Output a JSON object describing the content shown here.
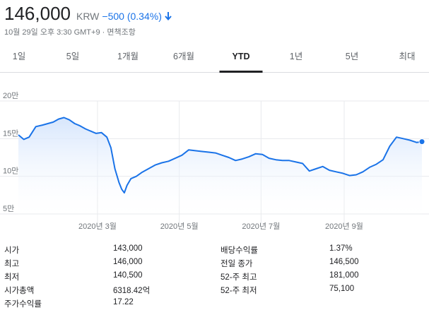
{
  "header": {
    "price": "146,000",
    "currency": "KRW",
    "change": "−500 (0.34%)",
    "change_color": "#1a73e8",
    "subtitle": "10월 29일 오후 3:30 GMT+9 · 면책조항"
  },
  "tabs": [
    {
      "label": "1일",
      "active": false
    },
    {
      "label": "5일",
      "active": false
    },
    {
      "label": "1개월",
      "active": false
    },
    {
      "label": "6개월",
      "active": false
    },
    {
      "label": "YTD",
      "active": true
    },
    {
      "label": "1년",
      "active": false
    },
    {
      "label": "5년",
      "active": false
    },
    {
      "label": "최대",
      "active": false
    }
  ],
  "chart_data": {
    "type": "area",
    "y_tick_labels": [
      "20만",
      "15만",
      "10만",
      "5만"
    ],
    "y_ticks": [
      200000,
      150000,
      100000,
      50000
    ],
    "ylim": [
      50000,
      200000
    ],
    "x_tick_labels": [
      "2020년 3월",
      "2020년 5월",
      "2020년 7월",
      "2020년 9월"
    ],
    "x_ticks": [
      "2020-03-01",
      "2020-05-01",
      "2020-07-01",
      "2020-09-01"
    ],
    "xlim": [
      "2020-01-02",
      "2020-10-29"
    ],
    "line_color": "#1a73e8",
    "fill_color": "#e8f0fe",
    "grid": true,
    "series": [
      {
        "x": [
          "2020-01-02",
          "2020-01-06",
          "2020-01-10",
          "2020-01-15",
          "2020-01-20",
          "2020-01-24",
          "2020-01-28",
          "2020-02-01",
          "2020-02-05",
          "2020-02-09",
          "2020-02-13",
          "2020-02-17",
          "2020-02-21",
          "2020-02-25",
          "2020-02-29",
          "2020-03-04",
          "2020-03-08",
          "2020-03-11",
          "2020-03-14",
          "2020-03-17",
          "2020-03-19",
          "2020-03-21",
          "2020-03-23",
          "2020-03-26",
          "2020-03-30",
          "2020-04-03",
          "2020-04-08",
          "2020-04-13",
          "2020-04-18",
          "2020-04-23",
          "2020-04-28",
          "2020-05-03",
          "2020-05-08",
          "2020-05-13",
          "2020-05-18",
          "2020-05-23",
          "2020-05-28",
          "2020-06-02",
          "2020-06-07",
          "2020-06-12",
          "2020-06-17",
          "2020-06-22",
          "2020-06-27",
          "2020-07-02",
          "2020-07-07",
          "2020-07-12",
          "2020-07-17",
          "2020-07-22",
          "2020-07-27",
          "2020-08-01",
          "2020-08-06",
          "2020-08-11",
          "2020-08-16",
          "2020-08-21",
          "2020-08-26",
          "2020-08-31",
          "2020-09-05",
          "2020-09-10",
          "2020-09-15",
          "2020-09-20",
          "2020-09-25",
          "2020-09-30",
          "2020-10-05",
          "2020-10-10",
          "2020-10-15",
          "2020-10-20",
          "2020-10-25",
          "2020-10-29"
        ],
        "y": [
          155000,
          149000,
          152000,
          166000,
          168000,
          170000,
          172000,
          176000,
          178000,
          175000,
          170000,
          167000,
          163000,
          160000,
          157000,
          158000,
          152000,
          138000,
          110000,
          92000,
          83000,
          78000,
          88000,
          97000,
          100000,
          105000,
          110000,
          115000,
          118000,
          120000,
          124000,
          128000,
          135000,
          134000,
          133000,
          132000,
          131000,
          128000,
          125000,
          121000,
          123000,
          126000,
          130000,
          129000,
          124000,
          122000,
          121000,
          121000,
          119000,
          117000,
          107000,
          110000,
          113000,
          108000,
          106000,
          104000,
          101000,
          102000,
          106000,
          112000,
          116000,
          122000,
          140000,
          152000,
          150000,
          148000,
          145000,
          146000
        ]
      }
    ]
  },
  "stats": {
    "left": [
      {
        "label": "시가",
        "value": "143,000"
      },
      {
        "label": "최고",
        "value": "146,000"
      },
      {
        "label": "최저",
        "value": "140,500"
      },
      {
        "label": "시가총액",
        "value": "6318.42억"
      },
      {
        "label": "주가수익률",
        "value": "17.22"
      }
    ],
    "right": [
      {
        "label": "배당수익률",
        "value": "1.37%"
      },
      {
        "label": "전일 종가",
        "value": "146,500"
      },
      {
        "label": "52-주 최고",
        "value": "181,000"
      },
      {
        "label": "52-주 최저",
        "value": "75,100"
      }
    ]
  }
}
